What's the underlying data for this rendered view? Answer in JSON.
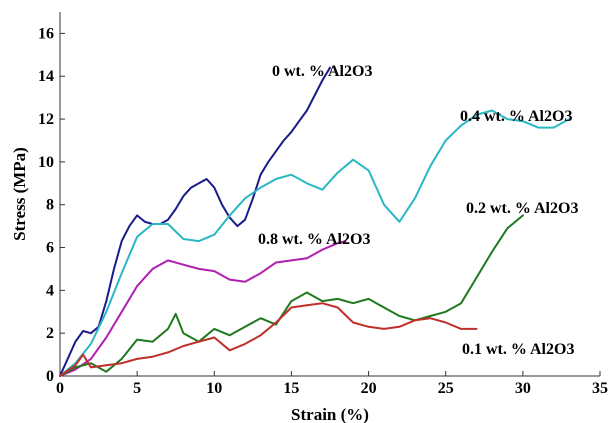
{
  "chart_data": {
    "type": "line",
    "title": "",
    "xlabel": "Strain (%)",
    "ylabel": "Stress (MPa)",
    "xlim": [
      0,
      35
    ],
    "ylim": [
      0,
      17
    ],
    "xticks": [
      0,
      5,
      10,
      15,
      20,
      25,
      30,
      35
    ],
    "yticks": [
      0,
      2,
      4,
      6,
      8,
      10,
      12,
      14,
      16
    ],
    "grid": false,
    "legend": "none",
    "series": [
      {
        "name": "0 wt. % Al2O3",
        "color": "#1a1a8c",
        "x": [
          0,
          1,
          1.5,
          2,
          2.5,
          3,
          3.5,
          4,
          4.5,
          5,
          5.5,
          6,
          6.5,
          7,
          7.5,
          8,
          8.5,
          9,
          9.5,
          10,
          10.5,
          11,
          11.5,
          12,
          12.5,
          13,
          13.5,
          14,
          14.5,
          15,
          15.5,
          16,
          16.5,
          17,
          17.5
        ],
        "y": [
          0,
          1.6,
          2.1,
          2.0,
          2.3,
          3.5,
          5.0,
          6.3,
          7.0,
          7.5,
          7.2,
          7.1,
          7.1,
          7.3,
          7.8,
          8.4,
          8.8,
          9.0,
          9.2,
          8.8,
          8.0,
          7.4,
          7.0,
          7.3,
          8.3,
          9.4,
          10.0,
          10.5,
          11.0,
          11.4,
          11.9,
          12.4,
          13.1,
          13.8,
          14.4
        ]
      },
      {
        "name": "0.4 wt. % Al2O3",
        "color": "#2ab7c4",
        "x": [
          0,
          1,
          2,
          3,
          4,
          5,
          6,
          7,
          8,
          9,
          10,
          11,
          12,
          13,
          14,
          15,
          16,
          17,
          18,
          19,
          20,
          21,
          22,
          23,
          24,
          25,
          26,
          27,
          28,
          29,
          30,
          31,
          32,
          33
        ],
        "y": [
          0,
          0.6,
          1.5,
          3.0,
          4.8,
          6.5,
          7.1,
          7.1,
          6.4,
          6.3,
          6.6,
          7.5,
          8.3,
          8.8,
          9.2,
          9.4,
          9.0,
          8.7,
          9.5,
          10.1,
          9.6,
          8.0,
          7.2,
          8.3,
          9.8,
          11.0,
          11.7,
          12.2,
          12.4,
          12.0,
          11.9,
          11.6,
          11.6,
          12.0
        ]
      },
      {
        "name": "0.8 wt. % Al2O3",
        "color": "#b020b0",
        "x": [
          0,
          1,
          2,
          3,
          4,
          5,
          6,
          7,
          8,
          9,
          10,
          11,
          12,
          13,
          14,
          15,
          16,
          17,
          18,
          18.5
        ],
        "y": [
          0,
          0.3,
          0.8,
          1.8,
          3.0,
          4.2,
          5.0,
          5.4,
          5.2,
          5.0,
          4.9,
          4.5,
          4.4,
          4.8,
          5.3,
          5.4,
          5.5,
          5.9,
          6.2,
          6.3
        ]
      },
      {
        "name": "0.2 wt. % Al2O3",
        "color": "#1f7a1f",
        "x": [
          0,
          1,
          2,
          3,
          4,
          5,
          6,
          7,
          7.5,
          8,
          9,
          10,
          11,
          12,
          13,
          14,
          15,
          16,
          17,
          18,
          19,
          20,
          21,
          22,
          23,
          24,
          25,
          26,
          27,
          28,
          29,
          30
        ],
        "y": [
          0,
          0.4,
          0.6,
          0.2,
          0.8,
          1.7,
          1.6,
          2.2,
          2.9,
          2.0,
          1.6,
          2.2,
          1.9,
          2.3,
          2.7,
          2.4,
          3.5,
          3.9,
          3.5,
          3.6,
          3.4,
          3.6,
          3.2,
          2.8,
          2.6,
          2.8,
          3.0,
          3.4,
          4.6,
          5.8,
          6.9,
          7.5
        ]
      },
      {
        "name": "0.1 wt. % Al2O3",
        "color": "#c0302a",
        "x": [
          0,
          1,
          1.5,
          2,
          3,
          4,
          5,
          6,
          7,
          8,
          9,
          10,
          11,
          12,
          13,
          14,
          15,
          16,
          17,
          18,
          19,
          20,
          21,
          22,
          23,
          24,
          25,
          26,
          27
        ],
        "y": [
          0,
          0.5,
          1.0,
          0.4,
          0.5,
          0.6,
          0.8,
          0.9,
          1.1,
          1.4,
          1.6,
          1.8,
          1.2,
          1.5,
          1.9,
          2.5,
          3.2,
          3.3,
          3.4,
          3.2,
          2.5,
          2.3,
          2.2,
          2.3,
          2.6,
          2.7,
          2.5,
          2.2,
          2.2
        ]
      }
    ]
  }
}
